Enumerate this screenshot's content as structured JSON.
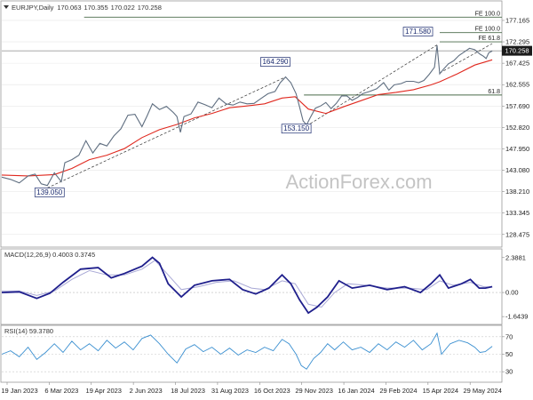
{
  "chart_data": {
    "type": "line",
    "symbol": "EURJPY",
    "period": "Daily",
    "ohlc": {
      "open": "170.063",
      "high": "170.355",
      "low": "170.022",
      "close": "170.258"
    },
    "last_price": "170.258",
    "watermark": "ActionForex.com",
    "x_tick_labels": [
      "19 Jan 2023",
      "6 Mar 2023",
      "19 Apr 2023",
      "2 Jun 2023",
      "18 Jul 2023",
      "31 Aug 2023",
      "16 Oct 2023",
      "29 Nov 2023",
      "16 Jan 2024",
      "29 Feb 2024",
      "15 Apr 2024",
      "29 May 2024"
    ],
    "price_axis": {
      "ylim": [
        126,
        181
      ],
      "tick_labels": [
        "177.165",
        "172.295",
        "167.425",
        "162.555",
        "157.690",
        "152.820",
        "147.950",
        "143.080",
        "138.210",
        "133.345",
        "128.475"
      ]
    },
    "series": [
      {
        "name": "",
        "points": [
          [
            0,
            141.5
          ],
          [
            10,
            141.0
          ],
          [
            20,
            140.2
          ],
          [
            30,
            141.8
          ],
          [
            38,
            142.2
          ],
          [
            45,
            140.0
          ],
          [
            52,
            139.6
          ],
          [
            60,
            142.5
          ],
          [
            68,
            140.5
          ],
          [
            72,
            144.8
          ],
          [
            80,
            145.5
          ],
          [
            88,
            146.5
          ],
          [
            96,
            149.8
          ],
          [
            104,
            147.0
          ],
          [
            112,
            149.2
          ],
          [
            120,
            148.6
          ],
          [
            128,
            150.9
          ],
          [
            136,
            152.5
          ],
          [
            144,
            155.6
          ],
          [
            152,
            155.8
          ],
          [
            160,
            153.0
          ],
          [
            166,
            155.5
          ],
          [
            172,
            158.2
          ],
          [
            180,
            156.9
          ],
          [
            188,
            157.6
          ],
          [
            196,
            156.2
          ],
          [
            200,
            155.3
          ],
          [
            204,
            151.7
          ],
          [
            208,
            155.3
          ],
          [
            216,
            155.9
          ],
          [
            224,
            158.6
          ],
          [
            232,
            158.0
          ],
          [
            240,
            157.3
          ],
          [
            248,
            159.5
          ],
          [
            256,
            158.2
          ],
          [
            264,
            157.9
          ],
          [
            272,
            158.6
          ],
          [
            280,
            158.2
          ],
          [
            288,
            158.3
          ],
          [
            296,
            159.4
          ],
          [
            304,
            160.5
          ],
          [
            312,
            161.0
          ],
          [
            318,
            163.0
          ],
          [
            324,
            164.3
          ],
          [
            330,
            163.0
          ],
          [
            336,
            160.5
          ],
          [
            340,
            157.5
          ],
          [
            344,
            154.3
          ],
          [
            348,
            153.4
          ],
          [
            352,
            155.0
          ],
          [
            358,
            157.2
          ],
          [
            364,
            157.7
          ],
          [
            370,
            158.5
          ],
          [
            376,
            157.1
          ],
          [
            382,
            158.3
          ],
          [
            388,
            160.0
          ],
          [
            394,
            160.0
          ],
          [
            400,
            159.0
          ],
          [
            406,
            159.6
          ],
          [
            412,
            160.5
          ],
          [
            420,
            161.0
          ],
          [
            428,
            161.6
          ],
          [
            436,
            163.0
          ],
          [
            442,
            161.3
          ],
          [
            448,
            162.5
          ],
          [
            456,
            162.8
          ],
          [
            462,
            163.3
          ],
          [
            470,
            163.3
          ],
          [
            476,
            163.0
          ],
          [
            482,
            163.5
          ],
          [
            488,
            164.9
          ],
          [
            494,
            166.5
          ],
          [
            497,
            171.5
          ],
          [
            500,
            165.0
          ],
          [
            504,
            166.0
          ],
          [
            510,
            167.3
          ],
          [
            516,
            168.0
          ],
          [
            522,
            169.2
          ],
          [
            528,
            170.0
          ],
          [
            534,
            170.8
          ],
          [
            540,
            170.5
          ],
          [
            546,
            169.5
          ],
          [
            550,
            169.0
          ],
          [
            553,
            168.5
          ],
          [
            556,
            169.8
          ],
          [
            560,
            170.2
          ]
        ]
      },
      {
        "name": "",
        "points": [
          [
            0,
            142.0
          ],
          [
            30,
            141.8
          ],
          [
            60,
            142.1
          ],
          [
            80,
            143.5
          ],
          [
            100,
            145.5
          ],
          [
            120,
            146.5
          ],
          [
            140,
            148.0
          ],
          [
            160,
            150.5
          ],
          [
            180,
            152.3
          ],
          [
            200,
            153.5
          ],
          [
            220,
            155.0
          ],
          [
            240,
            156.0
          ],
          [
            260,
            157.3
          ],
          [
            280,
            157.7
          ],
          [
            300,
            158.2
          ],
          [
            320,
            159.5
          ],
          [
            335,
            159.8
          ],
          [
            350,
            157.0
          ],
          [
            370,
            156.0
          ],
          [
            390,
            157.5
          ],
          [
            410,
            158.9
          ],
          [
            430,
            160.3
          ],
          [
            450,
            160.8
          ],
          [
            470,
            161.4
          ],
          [
            490,
            162.5
          ],
          [
            500,
            163.2
          ],
          [
            520,
            165.0
          ],
          [
            540,
            167.0
          ],
          [
            560,
            168.2
          ]
        ]
      }
    ],
    "annotations": [
      {
        "text": "139.050",
        "at": [
          52,
          139.05
        ]
      },
      {
        "text": "164.290",
        "at": [
          324,
          164.29
        ]
      },
      {
        "text": "153.150",
        "at": [
          348,
          153.15
        ]
      },
      {
        "text": "171.580",
        "at": [
          497,
          171.58
        ]
      }
    ],
    "levels": [
      {
        "label": "FE 100.0",
        "value": 177.9
      },
      {
        "label": "FE 100.0",
        "value": 174.4
      },
      {
        "label": "FE 61.8",
        "value": 172.3
      },
      {
        "label": "61.8",
        "value": 160.2
      }
    ],
    "indicators": [
      {
        "name": "MACD(12,26,9) 0.4003 0.3745",
        "ylim": [
          -2.0,
          2.8
        ],
        "tick_labels": [
          "2.3881",
          "0.00",
          "-1.6439"
        ],
        "macd": [
          [
            0,
            0.0
          ],
          [
            20,
            0.05
          ],
          [
            40,
            -0.4
          ],
          [
            55,
            -0.05
          ],
          [
            70,
            0.7
          ],
          [
            90,
            1.6
          ],
          [
            110,
            1.7
          ],
          [
            125,
            1.0
          ],
          [
            140,
            1.3
          ],
          [
            160,
            1.8
          ],
          [
            172,
            2.4
          ],
          [
            180,
            2.0
          ],
          [
            190,
            0.6
          ],
          [
            205,
            -0.3
          ],
          [
            220,
            0.5
          ],
          [
            240,
            0.8
          ],
          [
            260,
            0.9
          ],
          [
            275,
            0.2
          ],
          [
            290,
            -0.1
          ],
          [
            305,
            0.3
          ],
          [
            320,
            1.2
          ],
          [
            330,
            0.6
          ],
          [
            340,
            -0.5
          ],
          [
            350,
            -1.4
          ],
          [
            360,
            -1.0
          ],
          [
            372,
            -0.3
          ],
          [
            385,
            0.8
          ],
          [
            400,
            0.3
          ],
          [
            420,
            0.5
          ],
          [
            440,
            0.2
          ],
          [
            460,
            0.4
          ],
          [
            478,
            0.0
          ],
          [
            490,
            0.6
          ],
          [
            500,
            1.2
          ],
          [
            510,
            0.3
          ],
          [
            525,
            0.6
          ],
          [
            535,
            0.9
          ],
          [
            545,
            0.3
          ],
          [
            552,
            0.3
          ],
          [
            560,
            0.4
          ]
        ],
        "signal": [
          [
            0,
            0.1
          ],
          [
            20,
            0.1
          ],
          [
            40,
            -0.2
          ],
          [
            60,
            0.1
          ],
          [
            80,
            0.9
          ],
          [
            100,
            1.5
          ],
          [
            120,
            1.2
          ],
          [
            140,
            1.2
          ],
          [
            160,
            1.6
          ],
          [
            175,
            2.2
          ],
          [
            190,
            1.2
          ],
          [
            205,
            0.2
          ],
          [
            225,
            0.4
          ],
          [
            245,
            0.7
          ],
          [
            265,
            0.8
          ],
          [
            285,
            0.3
          ],
          [
            300,
            0.2
          ],
          [
            320,
            0.8
          ],
          [
            335,
            0.6
          ],
          [
            350,
            -0.8
          ],
          [
            365,
            -1.0
          ],
          [
            380,
            0.0
          ],
          [
            395,
            0.6
          ],
          [
            415,
            0.5
          ],
          [
            440,
            0.3
          ],
          [
            465,
            0.3
          ],
          [
            485,
            0.2
          ],
          [
            500,
            0.8
          ],
          [
            515,
            0.5
          ],
          [
            535,
            0.7
          ],
          [
            550,
            0.4
          ],
          [
            560,
            0.37
          ]
        ]
      },
      {
        "name": "RSI(14) 59.3780",
        "ylim": [
          20,
          80
        ],
        "tick_labels": [
          "70",
          "50",
          "30"
        ],
        "rsi": [
          [
            0,
            50
          ],
          [
            10,
            54
          ],
          [
            20,
            47
          ],
          [
            30,
            58
          ],
          [
            40,
            44
          ],
          [
            50,
            52
          ],
          [
            60,
            62
          ],
          [
            70,
            52
          ],
          [
            80,
            65
          ],
          [
            90,
            55
          ],
          [
            100,
            62
          ],
          [
            110,
            54
          ],
          [
            120,
            66
          ],
          [
            130,
            57
          ],
          [
            140,
            64
          ],
          [
            150,
            55
          ],
          [
            160,
            68
          ],
          [
            170,
            72
          ],
          [
            180,
            62
          ],
          [
            190,
            50
          ],
          [
            200,
            40
          ],
          [
            210,
            56
          ],
          [
            220,
            61
          ],
          [
            230,
            53
          ],
          [
            240,
            58
          ],
          [
            250,
            50
          ],
          [
            260,
            57
          ],
          [
            270,
            49
          ],
          [
            280,
            55
          ],
          [
            290,
            52
          ],
          [
            300,
            58
          ],
          [
            310,
            54
          ],
          [
            320,
            67
          ],
          [
            328,
            62
          ],
          [
            336,
            50
          ],
          [
            342,
            37
          ],
          [
            348,
            33
          ],
          [
            356,
            45
          ],
          [
            364,
            52
          ],
          [
            372,
            62
          ],
          [
            380,
            55
          ],
          [
            390,
            64
          ],
          [
            400,
            55
          ],
          [
            410,
            58
          ],
          [
            420,
            52
          ],
          [
            430,
            62
          ],
          [
            440,
            55
          ],
          [
            450,
            64
          ],
          [
            460,
            58
          ],
          [
            470,
            66
          ],
          [
            480,
            55
          ],
          [
            490,
            62
          ],
          [
            497,
            74
          ],
          [
            502,
            50
          ],
          [
            512,
            62
          ],
          [
            522,
            66
          ],
          [
            532,
            63
          ],
          [
            540,
            58
          ],
          [
            546,
            52
          ],
          [
            552,
            53
          ],
          [
            560,
            59
          ]
        ]
      }
    ]
  }
}
